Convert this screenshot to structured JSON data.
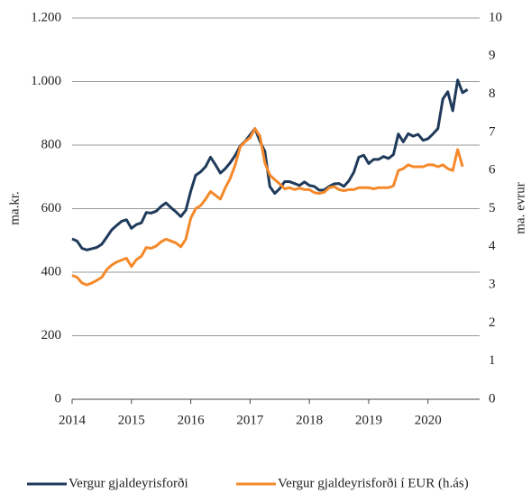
{
  "chart_data": {
    "type": "line",
    "y_label": "ma.kr.",
    "y2_label": "ma. evrur",
    "x": [
      2014,
      2014.083,
      2014.167,
      2014.25,
      2014.333,
      2014.417,
      2014.5,
      2014.583,
      2014.667,
      2014.75,
      2014.833,
      2014.917,
      2015,
      2015.083,
      2015.167,
      2015.25,
      2015.333,
      2015.417,
      2015.5,
      2015.583,
      2015.667,
      2015.75,
      2015.833,
      2015.917,
      2016,
      2016.083,
      2016.167,
      2016.25,
      2016.333,
      2016.417,
      2016.5,
      2016.583,
      2016.667,
      2016.75,
      2016.833,
      2016.917,
      2017,
      2017.083,
      2017.167,
      2017.25,
      2017.333,
      2017.417,
      2017.5,
      2017.583,
      2017.667,
      2017.75,
      2017.833,
      2017.917,
      2018,
      2018.083,
      2018.167,
      2018.25,
      2018.333,
      2018.417,
      2018.5,
      2018.583,
      2018.667,
      2018.75,
      2018.833,
      2018.917,
      2019,
      2019.083,
      2019.167,
      2019.25,
      2019.333,
      2019.417,
      2019.5,
      2019.583,
      2019.667,
      2019.75,
      2019.833,
      2019.917,
      2020,
      2020.083,
      2020.167,
      2020.25,
      2020.333,
      2020.417,
      2020.5,
      2020.583,
      2020.667
    ],
    "series": [
      {
        "name": "Vergur gjaldeyrisforði",
        "color": "#1f3a5a",
        "values": [
          505,
          498,
          475,
          470,
          474,
          478,
          488,
          510,
          533,
          547,
          560,
          565,
          538,
          550,
          555,
          588,
          586,
          592,
          607,
          618,
          603,
          590,
          575,
          595,
          655,
          705,
          716,
          732,
          762,
          738,
          712,
          726,
          745,
          768,
          797,
          812,
          832,
          852,
          812,
          780,
          670,
          648,
          663,
          685,
          685,
          679,
          673,
          684,
          673,
          670,
          658,
          659,
          670,
          678,
          679,
          670,
          688,
          715,
          762,
          768,
          742,
          755,
          755,
          764,
          758,
          770,
          835,
          810,
          836,
          828,
          834,
          815,
          820,
          835,
          852,
          945,
          968,
          908,
          1005,
          965,
          975
        ]
      },
      {
        "name": "Vergur gjaldeyrisforði í EUR (h.ás)",
        "color": "#f5892a",
        "axis": "y2",
        "values": [
          3.25,
          3.2,
          3.05,
          3.0,
          3.05,
          3.12,
          3.2,
          3.4,
          3.52,
          3.6,
          3.65,
          3.7,
          3.48,
          3.66,
          3.75,
          3.98,
          3.96,
          4.02,
          4.13,
          4.2,
          4.15,
          4.1,
          4.0,
          4.2,
          4.75,
          5.0,
          5.08,
          5.25,
          5.45,
          5.35,
          5.25,
          5.55,
          5.8,
          6.15,
          6.62,
          6.76,
          6.86,
          7.1,
          6.9,
          6.2,
          5.88,
          5.76,
          5.65,
          5.52,
          5.55,
          5.5,
          5.54,
          5.5,
          5.5,
          5.42,
          5.4,
          5.43,
          5.55,
          5.58,
          5.5,
          5.47,
          5.5,
          5.5,
          5.55,
          5.55,
          5.55,
          5.52,
          5.55,
          5.55,
          5.55,
          5.6,
          6.0,
          6.05,
          6.15,
          6.1,
          6.1,
          6.1,
          6.15,
          6.15,
          6.1,
          6.15,
          6.05,
          6.0,
          6.55,
          6.1,
          null
        ]
      }
    ],
    "xlim": [
      2014,
      2020.87
    ],
    "xticks": [
      2014,
      2015,
      2016,
      2017,
      2018,
      2019,
      2020
    ],
    "ylim": [
      0,
      1200
    ],
    "yticks": [
      0,
      200,
      400,
      600,
      800,
      {
        "value": 1000,
        "label": "1.000"
      },
      {
        "value": 1200,
        "label": "1.200"
      }
    ],
    "y2lim": [
      0,
      10
    ],
    "y2ticks": [
      0,
      1,
      2,
      3,
      4,
      5,
      6,
      7,
      8,
      9,
      10
    ],
    "grid": true,
    "legend": "bottom"
  }
}
